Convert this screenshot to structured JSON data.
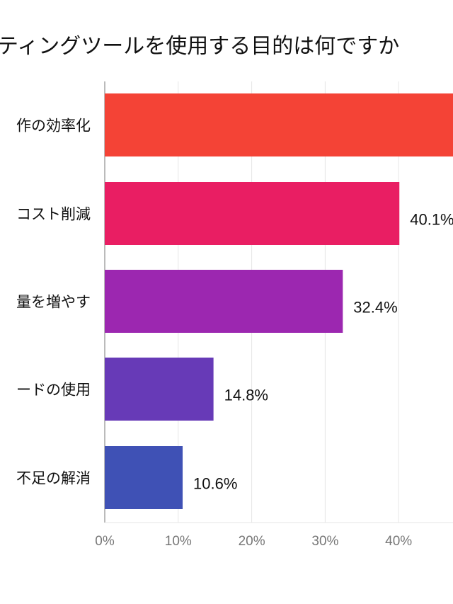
{
  "chart_data": {
    "type": "bar",
    "orientation": "horizontal",
    "title": "ティングツールを使用する目的は何ですか",
    "categories": [
      "作の効率化",
      "コスト削減",
      "量を増やす",
      "ードの使用",
      "不足の解消"
    ],
    "values": [
      50,
      40.1,
      32.4,
      14.8,
      10.6
    ],
    "value_labels": [
      "",
      "40.1%",
      "32.4%",
      "14.8%",
      "10.6%"
    ],
    "colors": [
      "#F44336",
      "#E91E63",
      "#9C27B0",
      "#673AB7",
      "#3F51B5"
    ],
    "xticks": [
      "0%",
      "10%",
      "20%",
      "30%",
      "40%"
    ],
    "xlim": [
      0,
      50
    ],
    "grid": true,
    "xlabel": "",
    "ylabel": ""
  }
}
